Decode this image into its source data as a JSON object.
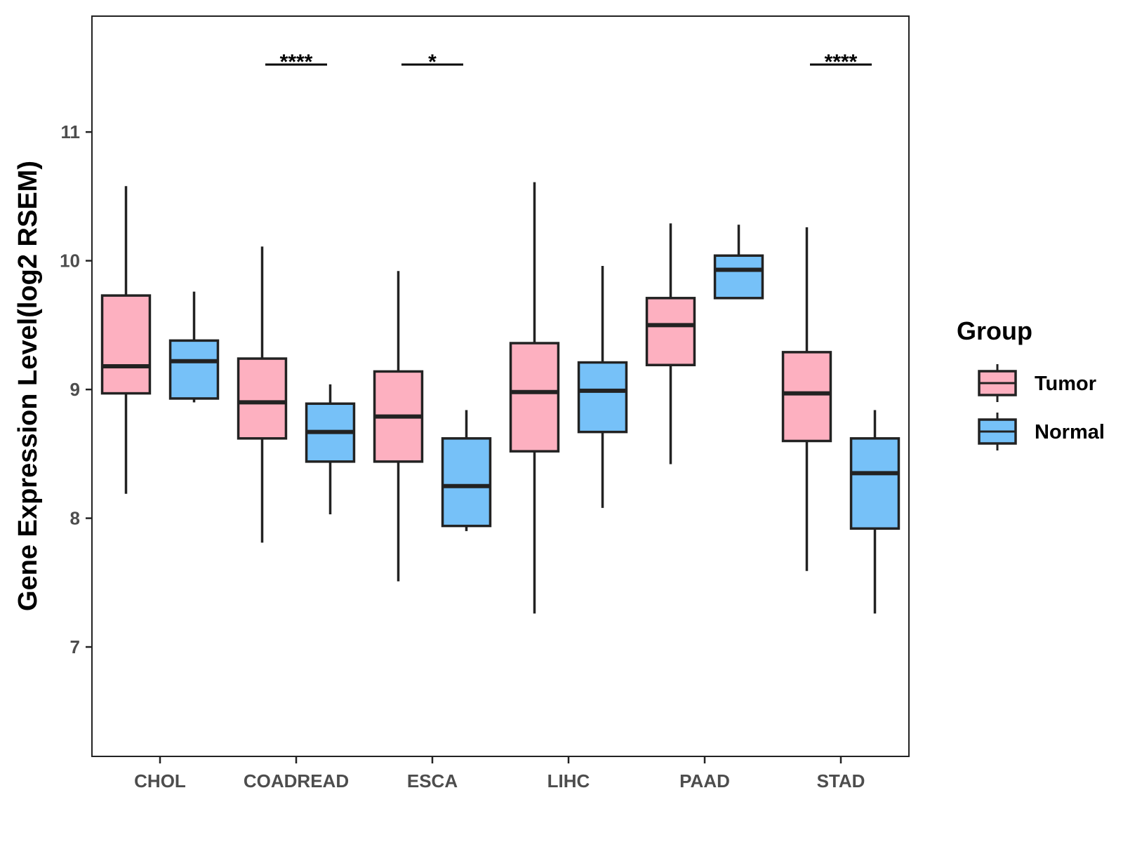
{
  "chart_data": {
    "type": "box",
    "title": "",
    "xlabel": "",
    "ylabel": "Gene Expression Level(log2 RSEM)",
    "ylim": [
      6.15,
      11.9
    ],
    "yticks": [
      7,
      8,
      9,
      10,
      11
    ],
    "categories": [
      "CHOL",
      "COADREAD",
      "ESCA",
      "LIHC",
      "PAAD",
      "STAD"
    ],
    "legend": {
      "title": "Group",
      "position": "right",
      "entries": [
        {
          "name": "Tumor",
          "color": "#FDB0C0"
        },
        {
          "name": "Normal",
          "color": "#76C1F8"
        }
      ]
    },
    "series": [
      {
        "name": "Tumor",
        "color": "#FDB0C0",
        "boxes": [
          {
            "category": "CHOL",
            "min": 8.19,
            "q1": 8.97,
            "median": 9.18,
            "q3": 9.73,
            "max": 10.58
          },
          {
            "category": "COADREAD",
            "min": 7.81,
            "q1": 8.62,
            "median": 8.9,
            "q3": 9.24,
            "max": 10.11
          },
          {
            "category": "ESCA",
            "min": 7.51,
            "q1": 8.44,
            "median": 8.79,
            "q3": 9.14,
            "max": 9.92
          },
          {
            "category": "LIHC",
            "min": 7.26,
            "q1": 8.52,
            "median": 8.98,
            "q3": 9.36,
            "max": 10.61
          },
          {
            "category": "PAAD",
            "min": 8.42,
            "q1": 9.19,
            "median": 9.5,
            "q3": 9.71,
            "max": 10.29
          },
          {
            "category": "STAD",
            "min": 7.59,
            "q1": 8.6,
            "median": 8.97,
            "q3": 9.29,
            "max": 10.26
          }
        ]
      },
      {
        "name": "Normal",
        "color": "#76C1F8",
        "boxes": [
          {
            "category": "CHOL",
            "min": 8.9,
            "q1": 8.93,
            "median": 9.22,
            "q3": 9.38,
            "max": 9.76
          },
          {
            "category": "COADREAD",
            "min": 8.03,
            "q1": 8.44,
            "median": 8.67,
            "q3": 8.89,
            "max": 9.04
          },
          {
            "category": "ESCA",
            "min": 7.9,
            "q1": 7.94,
            "median": 8.25,
            "q3": 8.62,
            "max": 8.84
          },
          {
            "category": "LIHC",
            "min": 8.08,
            "q1": 8.67,
            "median": 8.99,
            "q3": 9.21,
            "max": 9.96
          },
          {
            "category": "PAAD",
            "min": 9.71,
            "q1": 9.71,
            "median": 9.93,
            "q3": 10.04,
            "max": 10.28
          },
          {
            "category": "STAD",
            "min": 7.26,
            "q1": 7.92,
            "median": 8.35,
            "q3": 8.62,
            "max": 8.84
          }
        ]
      }
    ],
    "annotations": [
      {
        "category": "COADREAD",
        "label": "****",
        "y": 11.6
      },
      {
        "category": "ESCA",
        "label": "*",
        "y": 11.6
      },
      {
        "category": "STAD",
        "label": "****",
        "y": 11.6
      }
    ]
  }
}
